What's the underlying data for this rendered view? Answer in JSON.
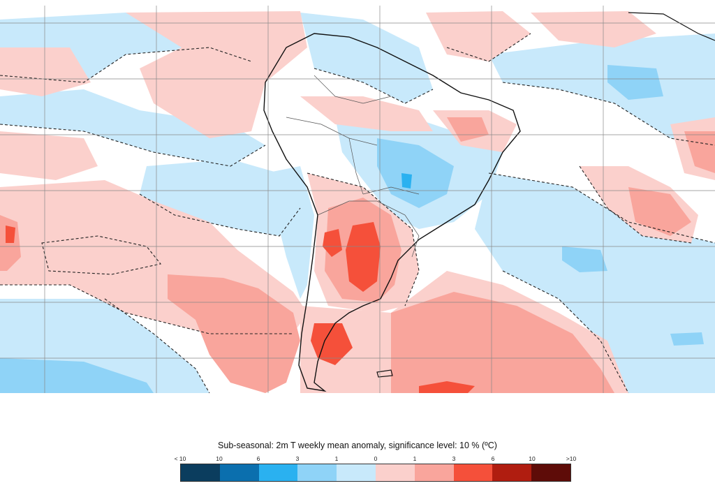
{
  "map": {
    "legend_title": "Sub-seasonal: 2m T weekly mean anomaly, significance level: 10 % (ºC)",
    "legend_ticks": [
      "< 10",
      "10",
      "6",
      "3",
      "1",
      "0",
      "1",
      "3",
      "6",
      "10",
      ">10"
    ],
    "legend_colors": [
      "#0b3d5e",
      "#0b6fae",
      "#2ab1f0",
      "#8fd3f7",
      "#c8e9fb",
      "#fbd0cc",
      "#f9a59c",
      "#f5503a",
      "#b01d10",
      "#5e0c08"
    ],
    "region": "South America",
    "grid": true
  }
}
